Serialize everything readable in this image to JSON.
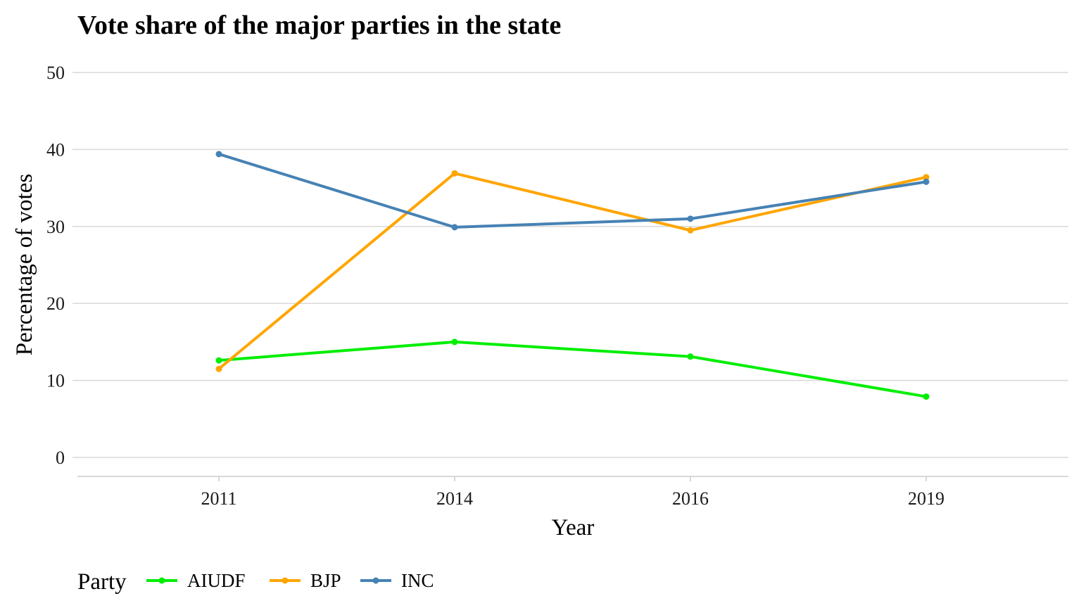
{
  "chart_data": {
    "type": "line",
    "title": "Vote share of the major parties in the state",
    "xlabel": "Year",
    "ylabel": "Percentage of votes",
    "categories": [
      "2011",
      "2014",
      "2016",
      "2019"
    ],
    "ylim": [
      0,
      50
    ],
    "yticks": [
      "0",
      "10",
      "20",
      "30",
      "40",
      "50"
    ],
    "grid": "horizontal",
    "legend": {
      "title": "Party",
      "placement": "bottom-left"
    },
    "series": [
      {
        "name": "AIUDF",
        "color": "#00ee00",
        "values": [
          12.6,
          15.0,
          13.1,
          7.9
        ]
      },
      {
        "name": "BJP",
        "color": "#ffa500",
        "values": [
          11.5,
          36.9,
          29.5,
          36.4
        ]
      },
      {
        "name": "INC",
        "color": "#4682b4",
        "values": [
          39.4,
          29.9,
          31.0,
          35.8
        ]
      }
    ]
  }
}
